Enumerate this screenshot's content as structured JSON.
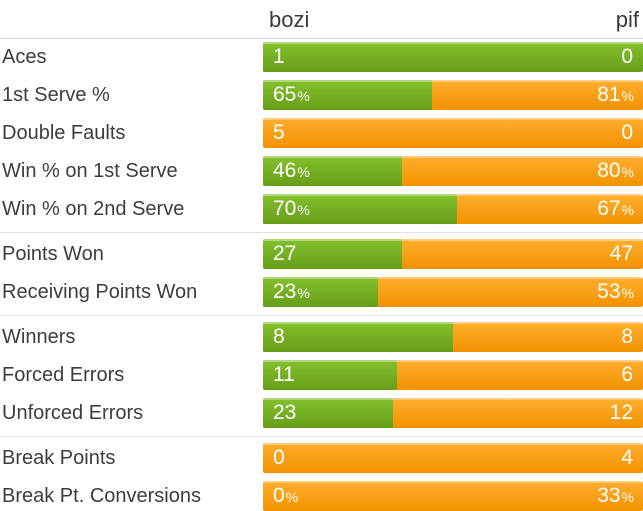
{
  "header": {
    "left_player": "bozi",
    "right_player": "pif"
  },
  "colors": {
    "left_player_bar_top": "#85c12e",
    "left_player_bar_bottom": "#669d18",
    "right_player_bar_top": "#ffae2e",
    "right_player_bar_bottom": "#f39200",
    "bar_value_text": "#ffffff",
    "label_text": "#3d3d3d",
    "divider": "#e3e3e3"
  },
  "groups": [
    {
      "rows": [
        {
          "label": "Aces",
          "left": {
            "value": "1",
            "suffix": ""
          },
          "right": {
            "value": "0",
            "suffix": ""
          },
          "green_pct": 100
        },
        {
          "label": "1st Serve %",
          "left": {
            "value": "65",
            "suffix": "%"
          },
          "right": {
            "value": "81",
            "suffix": "%"
          },
          "green_pct": 44.5
        },
        {
          "label": "Double Faults",
          "left": {
            "value": "5",
            "suffix": ""
          },
          "right": {
            "value": "0",
            "suffix": ""
          },
          "green_pct": 0
        },
        {
          "label": "Win % on 1st Serve",
          "left": {
            "value": "46",
            "suffix": "%"
          },
          "right": {
            "value": "80",
            "suffix": "%"
          },
          "green_pct": 36.5
        },
        {
          "label": "Win % on 2nd Serve",
          "left": {
            "value": "70",
            "suffix": "%"
          },
          "right": {
            "value": "67",
            "suffix": "%"
          },
          "green_pct": 51.1
        }
      ]
    },
    {
      "rows": [
        {
          "label": "Points Won",
          "left": {
            "value": "27",
            "suffix": ""
          },
          "right": {
            "value": "47",
            "suffix": ""
          },
          "green_pct": 36.5
        },
        {
          "label": "Receiving Points Won",
          "left": {
            "value": "23",
            "suffix": "%"
          },
          "right": {
            "value": "53",
            "suffix": "%"
          },
          "green_pct": 30.3
        }
      ]
    },
    {
      "rows": [
        {
          "label": "Winners",
          "left": {
            "value": "8",
            "suffix": ""
          },
          "right": {
            "value": "8",
            "suffix": ""
          },
          "green_pct": 50
        },
        {
          "label": "Forced Errors",
          "left": {
            "value": "11",
            "suffix": ""
          },
          "right": {
            "value": "6",
            "suffix": ""
          },
          "green_pct": 35.3
        },
        {
          "label": "Unforced Errors",
          "left": {
            "value": "23",
            "suffix": ""
          },
          "right": {
            "value": "12",
            "suffix": ""
          },
          "green_pct": 34.3
        }
      ]
    },
    {
      "rows": [
        {
          "label": "Break Points",
          "left": {
            "value": "0",
            "suffix": ""
          },
          "right": {
            "value": "4",
            "suffix": ""
          },
          "green_pct": 0
        },
        {
          "label": "Break Pt. Conversions",
          "left": {
            "value": "0",
            "suffix": "%"
          },
          "right": {
            "value": "33",
            "suffix": "%"
          },
          "green_pct": 0
        }
      ]
    }
  ]
}
